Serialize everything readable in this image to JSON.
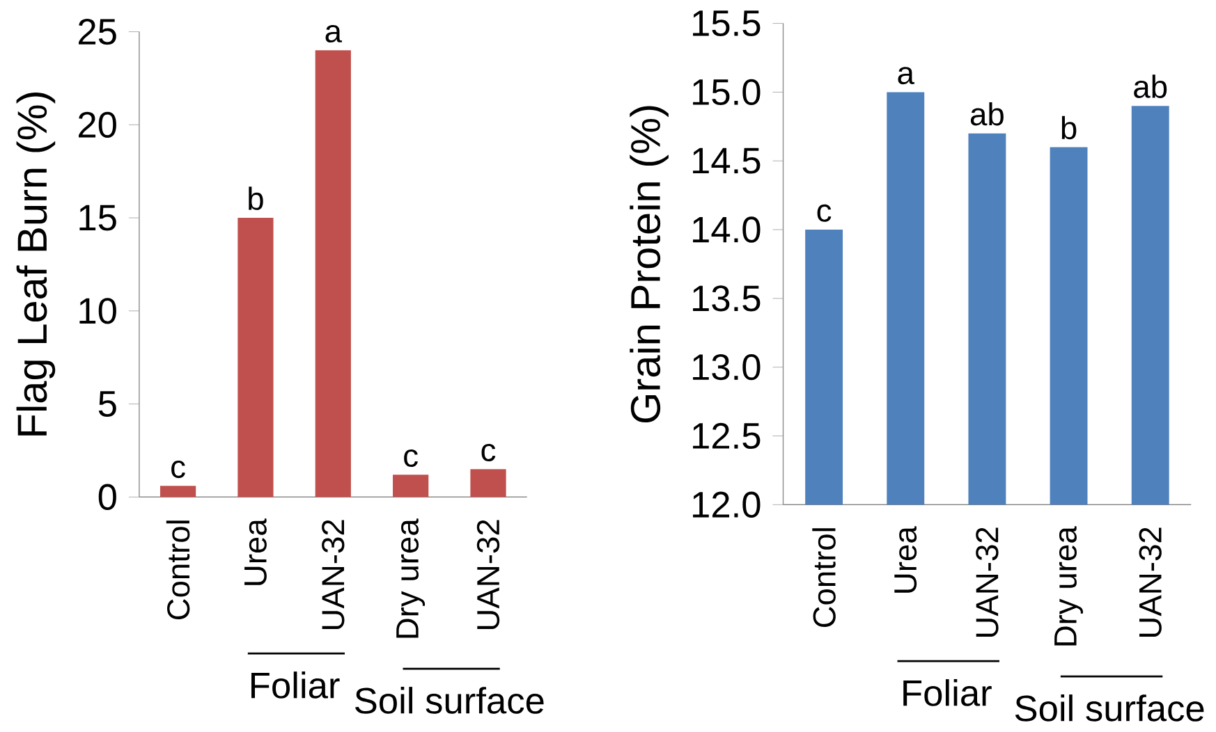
{
  "chart_data": [
    {
      "type": "bar",
      "ylabel": "Flag Leaf Burn (%)",
      "categories": [
        "Control",
        "Urea",
        "UAN-32",
        "Dry urea",
        "UAN-32"
      ],
      "values": [
        0.6,
        15,
        24,
        1.2,
        1.5
      ],
      "color": "#c0504d",
      "value_labels": [
        "c",
        "b",
        "a",
        "c",
        "c"
      ],
      "ylim": [
        0,
        25
      ],
      "yticks": [
        0,
        5,
        10,
        15,
        20,
        25
      ],
      "annotations": [
        "Foliar",
        "Soil surface"
      ]
    },
    {
      "type": "bar",
      "ylabel": "Grain Protein (%)",
      "categories": [
        "Control",
        "Urea",
        "UAN-32",
        "Dry urea",
        "UAN-32"
      ],
      "values": [
        14.0,
        15.0,
        14.7,
        14.6,
        14.9
      ],
      "color": "#4f81bd",
      "value_labels": [
        "c",
        "a",
        "ab",
        "b",
        "ab"
      ],
      "ylim": [
        12,
        15.5
      ],
      "yticks": [
        {
          "value": 12,
          "label": "12.0"
        },
        {
          "value": 12.5,
          "label": "12.5"
        },
        {
          "value": 13,
          "label": "13.0"
        },
        {
          "value": 13.5,
          "label": "13.5"
        },
        {
          "value": 14,
          "label": "14.0"
        },
        {
          "value": 14.5,
          "label": "14.5"
        },
        {
          "value": 15,
          "label": "15.0"
        },
        {
          "value": 15.5,
          "label": "15.5"
        }
      ],
      "annotations": [
        "Foliar",
        "Soil surface"
      ]
    }
  ]
}
